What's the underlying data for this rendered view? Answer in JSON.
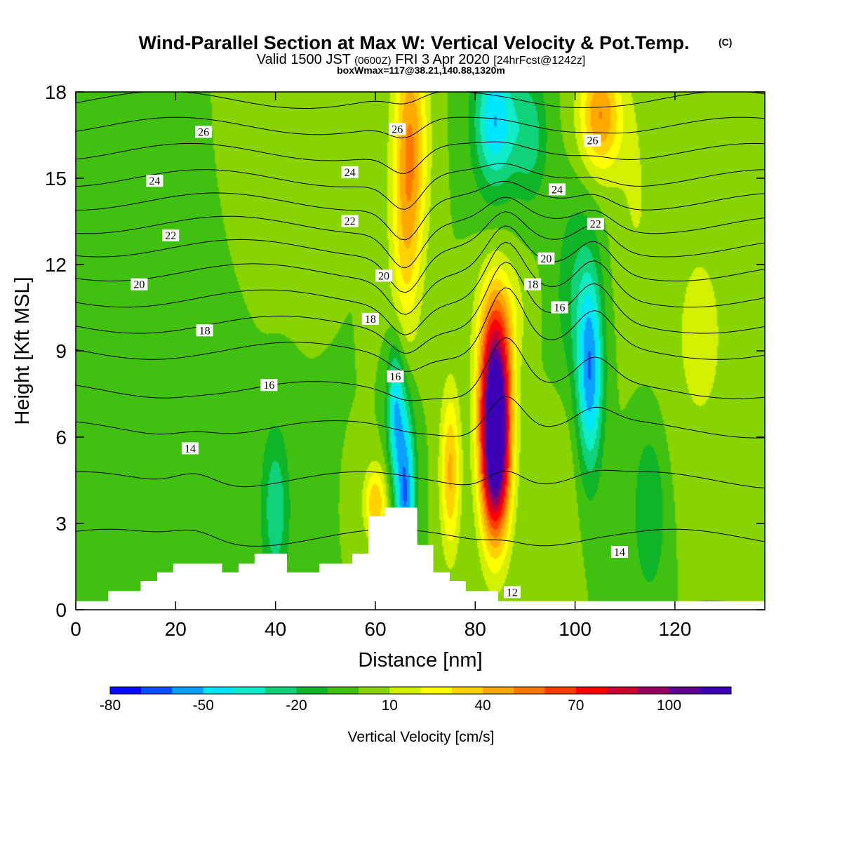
{
  "title": {
    "main": "Wind-Parallel Section at Max W: Vertical Velocity & Pot.Temp.",
    "copyright": "(C)",
    "valid_prefix": "Valid 1500 JST",
    "utc": "(0600Z)",
    "valid_suffix": "FRI 3 Apr 2020",
    "forecast": "[24hrFcst@1242z]",
    "boxwmax": "boxWmax=117@38.21,140.88,1320m"
  },
  "chart_data": {
    "type": "heatmap",
    "xlabel": "Distance [nm]",
    "ylabel": "Height [Kft MSL]",
    "xlim": [
      0,
      138
    ],
    "ylim": [
      0,
      18
    ],
    "x_ticks": [
      0,
      20,
      40,
      60,
      80,
      100,
      120
    ],
    "y_ticks": [
      0,
      3,
      6,
      9,
      12,
      15,
      18
    ],
    "colorbar": {
      "title": "Vertical Velocity [cm/s]",
      "levels": [
        -80,
        -70,
        -60,
        -50,
        -40,
        -30,
        -20,
        -10,
        0,
        10,
        20,
        30,
        40,
        50,
        60,
        70,
        80,
        90,
        100,
        110,
        120
      ],
      "labeled_levels": [
        -80,
        -50,
        -20,
        10,
        40,
        70,
        100
      ],
      "colors": [
        "#0a0aff",
        "#0a50ff",
        "#0aa0ff",
        "#00e6ff",
        "#10ecc8",
        "#10d27a",
        "#10b428",
        "#40c010",
        "#88d400",
        "#d2f000",
        "#ffff00",
        "#ffd200",
        "#ffa800",
        "#ff7800",
        "#ff3c00",
        "#ff0000",
        "#cc0030",
        "#960060",
        "#600090",
        "#3c00b4"
      ]
    },
    "background_w": 0,
    "w_features": [
      {
        "x": 84,
        "y": 5.8,
        "sx": 2.1,
        "sy": 2.3,
        "w": 140
      },
      {
        "x": 84,
        "y": 8.8,
        "sx": 2.5,
        "sy": 1.9,
        "w": 45
      },
      {
        "x": 75,
        "y": 4.8,
        "sx": 1.4,
        "sy": 2.0,
        "w": 42
      },
      {
        "x": 67,
        "y": 16.3,
        "sx": 2.4,
        "sy": 2.8,
        "w": 48
      },
      {
        "x": 66,
        "y": 12.0,
        "sx": 2.2,
        "sy": 2.5,
        "w": 22
      },
      {
        "x": 105,
        "y": 17.2,
        "sx": 3.0,
        "sy": 1.4,
        "w": 50
      },
      {
        "x": 60,
        "y": 3.7,
        "sx": 1.6,
        "sy": 0.9,
        "w": 40
      },
      {
        "x": 86,
        "y": 10.5,
        "sx": 3.5,
        "sy": 1.2,
        "w": 12
      },
      {
        "x": 125,
        "y": 9.5,
        "sx": 6.0,
        "sy": 4.0,
        "w": 12
      },
      {
        "x": 112,
        "y": 14.5,
        "sx": 3.0,
        "sy": 3.0,
        "w": 10
      },
      {
        "x": 35,
        "y": 15.5,
        "sx": 5.0,
        "sy": 3.0,
        "w": 8
      },
      {
        "x": 97,
        "y": 4.0,
        "sx": 2.5,
        "sy": 2.5,
        "w": 10
      },
      {
        "x": 66,
        "y": 4.0,
        "sx": 1.4,
        "sy": 2.2,
        "w": -60
      },
      {
        "x": 64,
        "y": 7.0,
        "sx": 1.2,
        "sy": 1.6,
        "w": -45
      },
      {
        "x": 103,
        "y": 8.2,
        "sx": 1.8,
        "sy": 2.4,
        "w": -55
      },
      {
        "x": 84,
        "y": 17.0,
        "sx": 3.0,
        "sy": 1.7,
        "w": -50
      },
      {
        "x": 91,
        "y": 16.5,
        "sx": 2.4,
        "sy": 1.6,
        "w": -25
      },
      {
        "x": 40,
        "y": 3.5,
        "sx": 2.0,
        "sy": 2.0,
        "w": -28
      },
      {
        "x": 115,
        "y": 3.5,
        "sx": 2.5,
        "sy": 2.2,
        "w": -20
      },
      {
        "x": 20,
        "y": 9.5,
        "sx": 8.0,
        "sy": 5.0,
        "w": -10
      },
      {
        "x": 100,
        "y": 11.0,
        "sx": 3.0,
        "sy": 2.5,
        "w": -18
      }
    ],
    "terrain": [
      {
        "x": 0,
        "h": 0.3
      },
      {
        "x": 6.5,
        "h": 0.3
      },
      {
        "x": 6.5,
        "h": 0.65
      },
      {
        "x": 13,
        "h": 0.65
      },
      {
        "x": 13,
        "h": 1.0
      },
      {
        "x": 16.3,
        "h": 1.0
      },
      {
        "x": 16.3,
        "h": 1.3
      },
      {
        "x": 19.5,
        "h": 1.3
      },
      {
        "x": 19.5,
        "h": 1.6
      },
      {
        "x": 29.3,
        "h": 1.6
      },
      {
        "x": 29.3,
        "h": 1.3
      },
      {
        "x": 32.6,
        "h": 1.3
      },
      {
        "x": 32.6,
        "h": 1.6
      },
      {
        "x": 35.8,
        "h": 1.6
      },
      {
        "x": 35.8,
        "h": 1.95
      },
      {
        "x": 42.3,
        "h": 1.95
      },
      {
        "x": 42.3,
        "h": 1.3
      },
      {
        "x": 48.8,
        "h": 1.3
      },
      {
        "x": 48.8,
        "h": 1.6
      },
      {
        "x": 55.4,
        "h": 1.6
      },
      {
        "x": 55.4,
        "h": 1.95
      },
      {
        "x": 58.6,
        "h": 1.95
      },
      {
        "x": 58.6,
        "h": 3.25
      },
      {
        "x": 61.9,
        "h": 3.25
      },
      {
        "x": 61.9,
        "h": 3.55
      },
      {
        "x": 68.4,
        "h": 3.55
      },
      {
        "x": 68.4,
        "h": 2.25
      },
      {
        "x": 71.6,
        "h": 2.25
      },
      {
        "x": 71.6,
        "h": 1.3
      },
      {
        "x": 74.9,
        "h": 1.3
      },
      {
        "x": 74.9,
        "h": 1.0
      },
      {
        "x": 78.1,
        "h": 1.0
      },
      {
        "x": 78.1,
        "h": 0.65
      },
      {
        "x": 84.6,
        "h": 0.65
      },
      {
        "x": 84.6,
        "h": 0.3
      },
      {
        "x": 138,
        "h": 0.3
      }
    ],
    "theta_levels": [
      12,
      13,
      14,
      15,
      16,
      17,
      18,
      19,
      20,
      21,
      22,
      23,
      24,
      25,
      26,
      27,
      28
    ],
    "theta_profile_z": [
      0,
      3,
      6,
      9,
      12,
      15,
      18
    ],
    "theta_profile_t": [
      12.0,
      13.2,
      14.8,
      17.0,
      20.3,
      24.0,
      27.3
    ],
    "contour_labels": [
      {
        "x": 25.6,
        "y": 16.6,
        "text": "26"
      },
      {
        "x": 15.8,
        "y": 14.9,
        "text": "24"
      },
      {
        "x": 19.0,
        "y": 13.0,
        "text": "22"
      },
      {
        "x": 12.7,
        "y": 11.3,
        "text": "20"
      },
      {
        "x": 25.8,
        "y": 9.7,
        "text": "18"
      },
      {
        "x": 38.7,
        "y": 7.8,
        "text": "16"
      },
      {
        "x": 22.9,
        "y": 5.6,
        "text": "14"
      },
      {
        "x": 64.4,
        "y": 16.7,
        "text": "26"
      },
      {
        "x": 54.9,
        "y": 15.2,
        "text": "24"
      },
      {
        "x": 54.9,
        "y": 13.5,
        "text": "22"
      },
      {
        "x": 61.7,
        "y": 11.6,
        "text": "20"
      },
      {
        "x": 59.0,
        "y": 10.1,
        "text": "18"
      },
      {
        "x": 64.0,
        "y": 8.1,
        "text": "16"
      },
      {
        "x": 103.5,
        "y": 16.3,
        "text": "26"
      },
      {
        "x": 96.4,
        "y": 14.6,
        "text": "24"
      },
      {
        "x": 104.1,
        "y": 13.4,
        "text": "22"
      },
      {
        "x": 94.2,
        "y": 12.2,
        "text": "20"
      },
      {
        "x": 91.5,
        "y": 11.3,
        "text": "18"
      },
      {
        "x": 96.9,
        "y": 10.5,
        "text": "16"
      },
      {
        "x": 108.9,
        "y": 2.0,
        "text": "14"
      },
      {
        "x": 87.4,
        "y": 0.6,
        "text": "12"
      }
    ]
  }
}
